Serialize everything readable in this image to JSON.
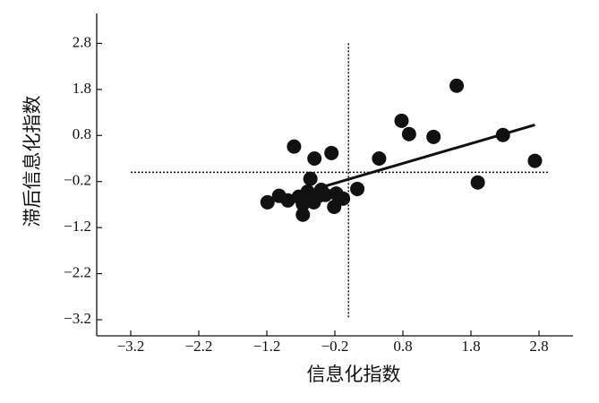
{
  "chart_data": {
    "type": "scatter",
    "x_label": "信息化指数",
    "y_label": "滞后信息化指数",
    "color": "#111111",
    "xlim": [
      -3.7,
      3.3
    ],
    "ylim": [
      -3.55,
      3.45
    ],
    "xticks": [
      {
        "value": -3.2,
        "label": "−3.2"
      },
      {
        "value": -2.2,
        "label": "−2.2"
      },
      {
        "value": -1.2,
        "label": "−1.2"
      },
      {
        "value": -0.2,
        "label": "−0.2"
      },
      0.8,
      1.8,
      2.8
    ],
    "yticks": [
      {
        "value": -3.2,
        "label": "−3.2"
      },
      {
        "value": -2.2,
        "label": "−2.2"
      },
      {
        "value": -1.2,
        "label": "−1.2"
      },
      {
        "value": -0.2,
        "label": "−0.2"
      },
      0.8,
      1.8,
      2.8
    ],
    "ref_x": 0,
    "ref_y": 0,
    "fit_line": {
      "x": [
        -0.44,
        2.74
      ],
      "y": [
        -0.34,
        1.03
      ]
    },
    "x": [
      1.59,
      0.78,
      0.89,
      1.25,
      2.27,
      2.74,
      1.9,
      0.45,
      0.13,
      -0.8,
      -0.5,
      -0.25,
      -1.19,
      -1.02,
      -0.89,
      -0.73,
      -0.67,
      -0.67,
      -0.56,
      -0.6,
      -0.51,
      -0.44,
      -0.34,
      -0.21,
      -0.18,
      -0.08,
      -0.58,
      -0.4
    ],
    "values": [
      1.88,
      1.12,
      0.83,
      0.77,
      0.81,
      0.25,
      -0.22,
      0.3,
      -0.36,
      0.56,
      0.3,
      0.42,
      -0.65,
      -0.51,
      -0.61,
      -0.53,
      -0.69,
      -0.92,
      -0.14,
      -0.42,
      -0.65,
      -0.51,
      -0.49,
      -0.75,
      -0.46,
      -0.57,
      -0.49,
      -0.38
    ]
  }
}
